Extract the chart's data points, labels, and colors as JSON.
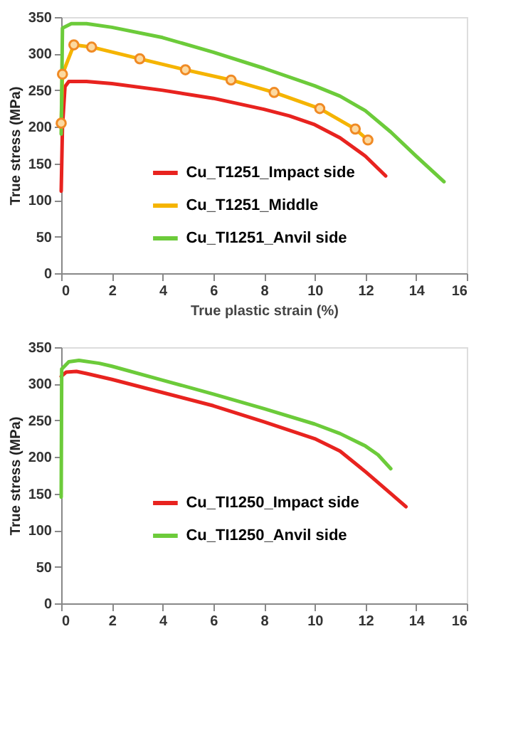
{
  "chart_data": [
    {
      "type": "line",
      "xlabel": "True plastic strain (%)",
      "ylabel": "True stress (MPa)",
      "xlim": [
        0,
        16
      ],
      "xticks": [
        0,
        2,
        4,
        6,
        8,
        10,
        12,
        14,
        16
      ],
      "ylim": [
        0,
        350
      ],
      "yticks": [
        0,
        50,
        100,
        150,
        200,
        250,
        300,
        350
      ],
      "legend": "bottom",
      "line_style": "solid",
      "series": [
        {
          "name": "Cu_T1251_Impact side",
          "color": "#e8231f",
          "x": [
            0,
            0.05,
            0.15,
            0.3,
            1,
            2,
            4,
            6,
            8,
            9,
            10,
            11,
            12,
            12.8
          ],
          "values": [
            112,
            200,
            255,
            262,
            262,
            259,
            250,
            239,
            224,
            215,
            203,
            185,
            160,
            133
          ]
        },
        {
          "name": "Cu_T1251_Middle",
          "color": "#f5b400",
          "marker": "circle",
          "x": [
            0,
            0.05,
            0.5,
            1.2,
            3.1,
            4.9,
            6.7,
            8.4,
            10.2,
            11.6,
            12.1
          ],
          "values": [
            205,
            272,
            312,
            309,
            293,
            278,
            264,
            247,
            225,
            197,
            182
          ]
        },
        {
          "name": "Cu_TI1251_Anvil side",
          "color": "#6ccb3a",
          "x": [
            0,
            0.05,
            0.4,
            1,
            2,
            4,
            6,
            8,
            10,
            11,
            12,
            13,
            14,
            15.1
          ],
          "values": [
            190,
            335,
            341,
            341,
            336,
            322,
            302,
            280,
            256,
            242,
            222,
            193,
            160,
            125
          ]
        }
      ]
    },
    {
      "type": "line",
      "ylabel": "True stress (MPa)",
      "xlim": [
        0,
        16
      ],
      "xticks": [
        0,
        2,
        4,
        6,
        8,
        10,
        12,
        14,
        16
      ],
      "ylim": [
        0,
        350
      ],
      "yticks": [
        0,
        50,
        100,
        150,
        200,
        250,
        300,
        350
      ],
      "legend": "bottom",
      "line_style": "solid",
      "series": [
        {
          "name": "Cu_TI1250_Impact side",
          "color": "#e8231f",
          "x": [
            0,
            0.2,
            0.6,
            1,
            2,
            4,
            6,
            8,
            10,
            11,
            12,
            13,
            13.6
          ],
          "values": [
            310,
            316,
            317,
            314,
            306,
            288,
            270,
            248,
            225,
            208,
            180,
            150,
            132
          ]
        },
        {
          "name": "Cu_TI1250_Anvil side",
          "color": "#6ccb3a",
          "x": [
            0,
            0.02,
            0.3,
            0.7,
            1.5,
            2,
            4,
            6,
            8,
            10,
            11,
            12,
            12.5,
            13
          ],
          "values": [
            145,
            320,
            330,
            332,
            328,
            324,
            305,
            286,
            266,
            245,
            232,
            215,
            203,
            184
          ]
        }
      ]
    }
  ]
}
